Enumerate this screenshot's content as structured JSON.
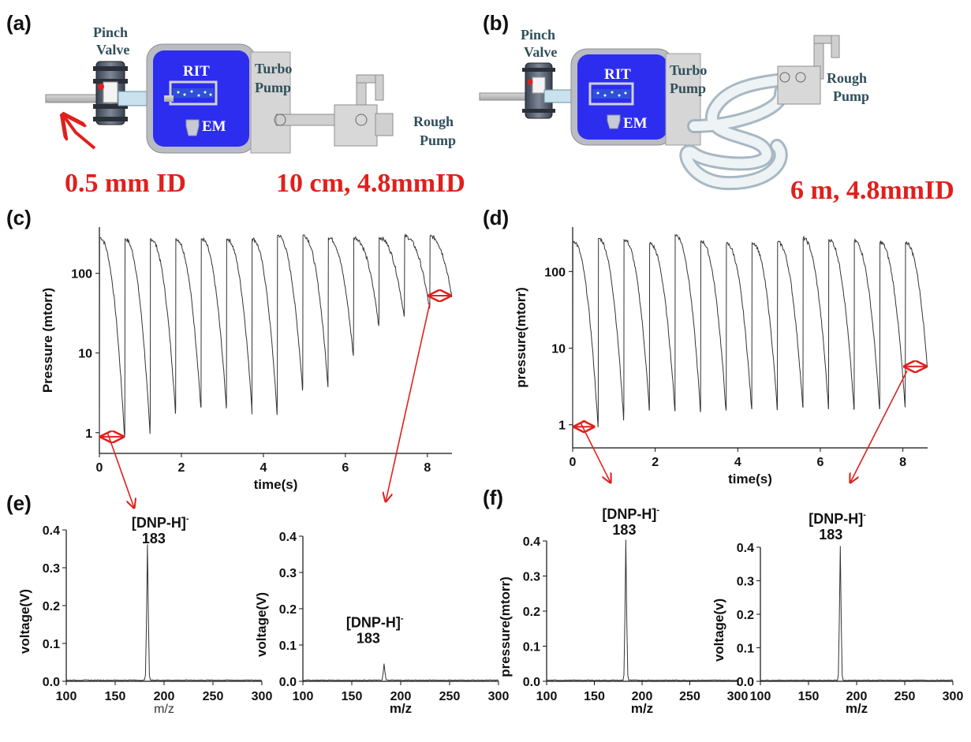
{
  "panels": {
    "a": {
      "label": "(a)",
      "pinch_valve": [
        "Pinch",
        "Valve"
      ],
      "rit": "RIT",
      "em": "EM",
      "turbo_pump": [
        "Turbo",
        "Pump"
      ],
      "rough_pump": [
        "Rough",
        "Pump"
      ],
      "inlet_caption": "0.5 mm ID",
      "line_caption": "10 cm, 4.8mmID"
    },
    "b": {
      "label": "(b)",
      "pinch_valve": [
        "Pinch",
        "Valve"
      ],
      "rit": "RIT",
      "em": "EM",
      "turbo_pump": [
        "Turbo",
        "Pump"
      ],
      "rough_pump": [
        "Rough",
        "Pump"
      ],
      "line_caption": "6 m, 4.8mmID"
    },
    "c": {
      "label": "(c)"
    },
    "d": {
      "label": "(d)"
    },
    "e": {
      "label": "(e)"
    },
    "f": {
      "label": "(f)"
    }
  },
  "colors": {
    "chamber": "#2d2df0",
    "caption_red": "#e0201c",
    "trace": "#333333",
    "annotation_arrow": "#e0201c"
  },
  "chart_data": [
    {
      "id": "c",
      "type": "line",
      "xlabel": "time(s)",
      "ylabel": "Pressure (mtorr)",
      "xlim": [
        0,
        8.6
      ],
      "ylim": [
        0.55,
        380
      ],
      "yscale": "log",
      "xticks": [
        0,
        2,
        4,
        6,
        8
      ],
      "yticks": [
        1,
        10,
        100
      ],
      "cycle_starts": [
        0.0,
        0.62,
        1.24,
        1.86,
        2.48,
        3.1,
        3.72,
        4.34,
        4.96,
        5.58,
        6.2,
        6.82,
        7.44,
        8.06
      ],
      "cycle_peaks": [
        280,
        270,
        270,
        270,
        270,
        270,
        270,
        300,
        300,
        280,
        280,
        280,
        290,
        290
      ],
      "cycle_minima": [
        0.85,
        0.95,
        1.8,
        2.0,
        2.1,
        2.2,
        1.7,
        3.5,
        3.8,
        9.0,
        22,
        28,
        35,
        40
      ],
      "final_value": 50,
      "marker_start": [
        0.0,
        0.62
      ],
      "marker_end": [
        8.0,
        8.6
      ]
    },
    {
      "id": "d",
      "type": "line",
      "xlabel": "time(s)",
      "ylabel": "pressure(mtorr)",
      "xlim": [
        0,
        8.6
      ],
      "ylim": [
        0.5,
        380
      ],
      "yscale": "log",
      "xticks": [
        0,
        2,
        4,
        6,
        8
      ],
      "yticks": [
        1,
        10,
        100
      ],
      "cycle_starts": [
        0.0,
        0.62,
        1.24,
        1.86,
        2.48,
        3.1,
        3.72,
        4.34,
        4.96,
        5.58,
        6.2,
        6.82,
        7.44,
        8.06
      ],
      "cycle_peaks": [
        250,
        270,
        260,
        230,
        300,
        250,
        230,
        240,
        240,
        270,
        260,
        250,
        240,
        240
      ],
      "cycle_minima": [
        0.9,
        1.2,
        1.6,
        1.6,
        1.5,
        1.5,
        1.6,
        1.6,
        1.7,
        1.7,
        1.6,
        1.6,
        1.6,
        4.5
      ],
      "final_value": 5.5,
      "marker_start": [
        0.0,
        0.55
      ],
      "marker_end": [
        8.0,
        8.6
      ]
    },
    {
      "id": "e1",
      "type": "line",
      "xlabel": "m/z",
      "ylabel": "voltage(V)",
      "xlim": [
        100,
        300
      ],
      "ylim": [
        0,
        0.4
      ],
      "xticks": [
        100,
        150,
        200,
        250,
        300
      ],
      "yticks": [
        0.0,
        0.1,
        0.2,
        0.3,
        0.4
      ],
      "peak": {
        "x": 183,
        "y": 0.36
      },
      "annotation": {
        "ion": "[DNP-H]",
        "charge": "-",
        "mz": "183"
      }
    },
    {
      "id": "e2",
      "type": "line",
      "xlabel": "m/z",
      "ylabel": "voltage(V)",
      "xlim": [
        100,
        300
      ],
      "ylim": [
        0,
        0.4
      ],
      "xticks": [
        100,
        150,
        200,
        250,
        300
      ],
      "yticks": [
        0.0,
        0.1,
        0.2,
        0.3,
        0.4
      ],
      "peak": {
        "x": 183,
        "y": 0.045
      },
      "annotation": {
        "ion": "[DNP-H]",
        "charge": "-",
        "mz": "183"
      }
    },
    {
      "id": "f1",
      "type": "line",
      "xlabel": "m/z",
      "ylabel": "pressure(mtorr)",
      "xlim": [
        100,
        300
      ],
      "ylim": [
        0,
        0.4
      ],
      "xticks": [
        100,
        150,
        200,
        250,
        300
      ],
      "yticks": [
        0.0,
        0.1,
        0.2,
        0.3,
        0.4
      ],
      "peak": {
        "x": 183,
        "y": 0.4
      },
      "annotation": {
        "ion": "[DNP-H]",
        "charge": "-",
        "mz": "183"
      }
    },
    {
      "id": "f2",
      "type": "line",
      "xlabel": "m/z",
      "ylabel": "voltage(v)",
      "xlim": [
        100,
        300
      ],
      "ylim": [
        0,
        0.4
      ],
      "xticks": [
        100,
        150,
        200,
        250,
        300
      ],
      "yticks": [
        0.0,
        0.1,
        0.2,
        0.3,
        0.4
      ],
      "peak": {
        "x": 183,
        "y": 0.4
      },
      "annotation": {
        "ion": "[DNP-H]",
        "charge": "-",
        "mz": "183"
      }
    }
  ]
}
